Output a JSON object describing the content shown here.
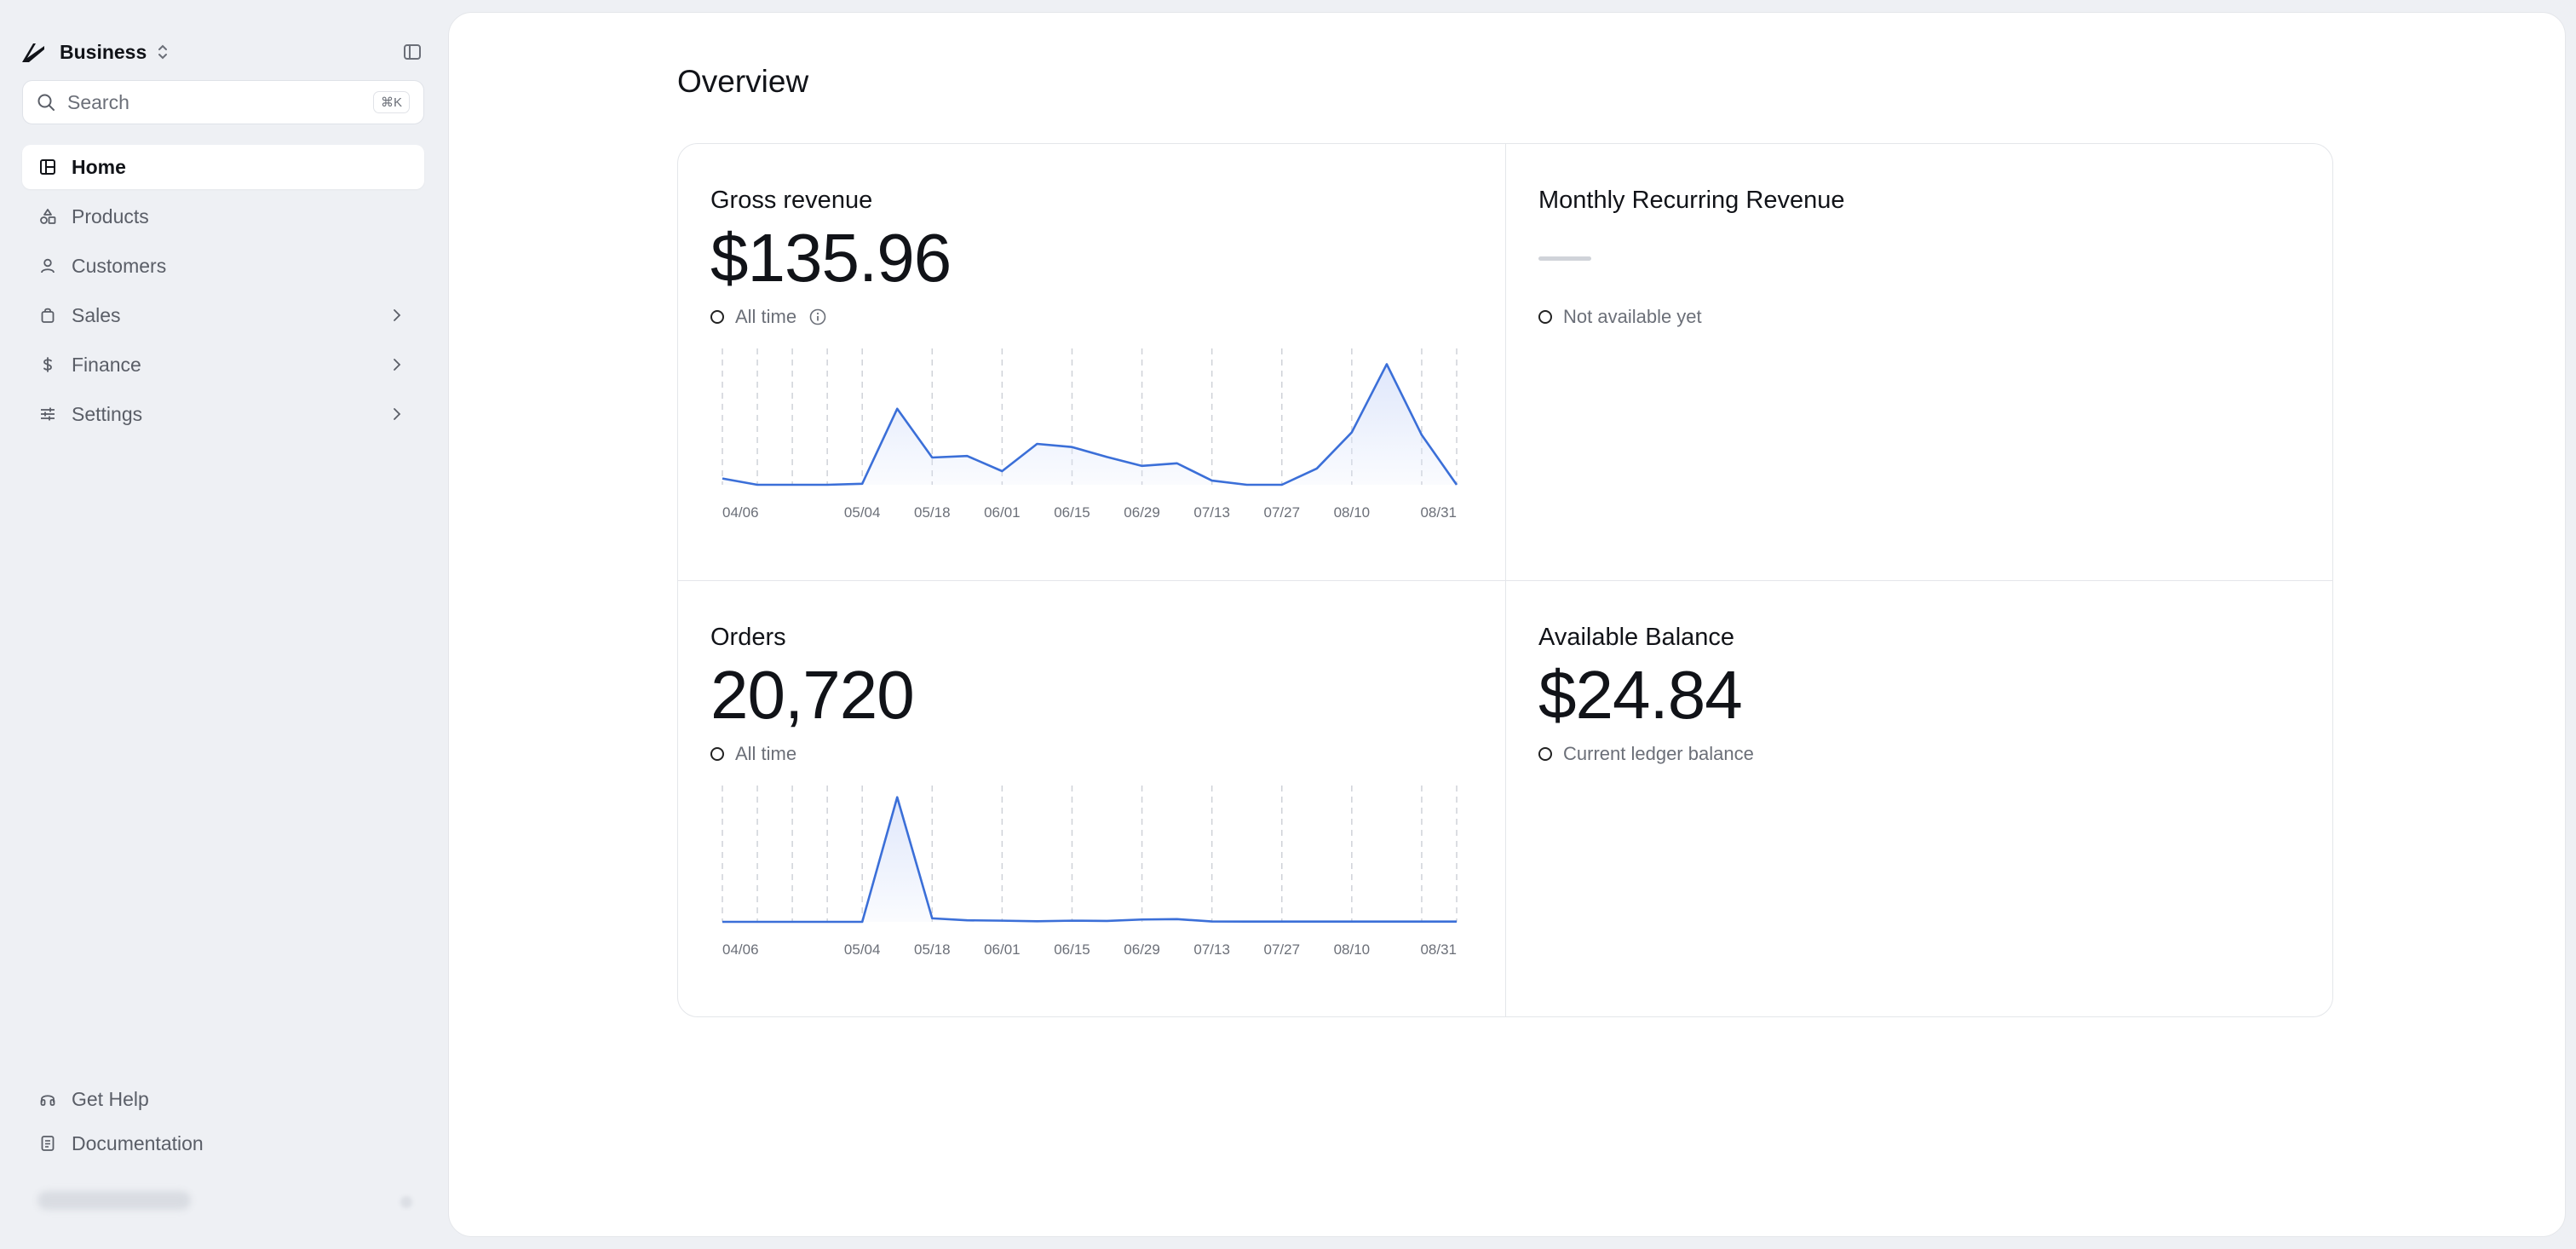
{
  "sidebar": {
    "org_name": "Business",
    "search_placeholder": "Search",
    "search_shortcut": "⌘K",
    "items": [
      {
        "label": "Home",
        "icon": "home-grid-icon"
      },
      {
        "label": "Products",
        "icon": "shapes-icon"
      },
      {
        "label": "Customers",
        "icon": "user-icon"
      },
      {
        "label": "Sales",
        "icon": "shopping-bag-icon"
      },
      {
        "label": "Finance",
        "icon": "dollar-icon"
      },
      {
        "label": "Settings",
        "icon": "sliders-icon"
      }
    ],
    "bottom_items": [
      {
        "label": "Get Help",
        "icon": "headphones-icon"
      },
      {
        "label": "Documentation",
        "icon": "document-icon"
      }
    ]
  },
  "main": {
    "title": "Overview"
  },
  "cards": {
    "gross": {
      "title": "Gross revenue",
      "value": "$135.96",
      "caption": "All time"
    },
    "mrr": {
      "title": "Monthly Recurring Revenue",
      "value": "—",
      "caption": "Not available yet"
    },
    "orders": {
      "title": "Orders",
      "value": "20,720",
      "caption": "All time"
    },
    "balance": {
      "title": "Available Balance",
      "value": "$24.84",
      "caption": "Current ledger balance"
    }
  },
  "colors": {
    "line": "#3b6fd8",
    "fill": "#dfe7fb"
  },
  "chart_data": [
    {
      "type": "area",
      "x": [
        "04/06",
        "04/13",
        "04/20",
        "04/27",
        "05/04",
        "05/11",
        "05/18",
        "05/25",
        "06/01",
        "06/08",
        "06/15",
        "06/22",
        "06/29",
        "07/06",
        "07/13",
        "07/20",
        "07/27",
        "08/03",
        "08/10",
        "08/17",
        "08/24",
        "08/31"
      ],
      "tick_labels": [
        "04/06",
        "05/04",
        "05/18",
        "06/01",
        "06/15",
        "06/29",
        "07/13",
        "07/27",
        "08/10",
        "08/31"
      ],
      "values": [
        1.2,
        0,
        0,
        0,
        0.2,
        14.5,
        5.2,
        5.5,
        2.6,
        7.8,
        7.2,
        5.3,
        3.6,
        4.1,
        0.8,
        0,
        0,
        3.1,
        10,
        23,
        9.5,
        0
      ],
      "ylim": [
        0,
        26
      ]
    },
    {
      "type": "area",
      "x": [
        "04/06",
        "04/13",
        "04/20",
        "04/27",
        "05/04",
        "05/11",
        "05/18",
        "05/25",
        "06/01",
        "06/08",
        "06/15",
        "06/22",
        "06/29",
        "07/06",
        "07/13",
        "07/20",
        "07/27",
        "08/03",
        "08/10",
        "08/17",
        "08/24",
        "08/31"
      ],
      "tick_labels": [
        "04/06",
        "05/04",
        "05/18",
        "06/01",
        "06/15",
        "06/29",
        "07/13",
        "07/27",
        "08/10",
        "08/31"
      ],
      "values": [
        0,
        0,
        0,
        0,
        0,
        16000,
        450,
        200,
        150,
        80,
        150,
        120,
        300,
        350,
        50,
        30,
        30,
        30,
        30,
        30,
        30,
        30
      ],
      "ylim": [
        0,
        17500
      ]
    }
  ]
}
